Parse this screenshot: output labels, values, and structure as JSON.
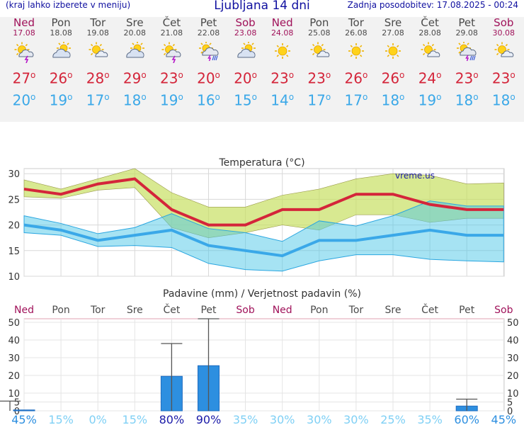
{
  "header": {
    "left_note": "(kraj lahko izberete v meniju)",
    "title": "Ljubljana 14 dni",
    "last_update": "Zadnja posodobitev: 17.08.2025 - 00:24"
  },
  "colors": {
    "weekend": "#a0125a",
    "weekday": "#4a4a4a",
    "max": "#d4253a",
    "min": "#3aa8e8",
    "bar": "#2d8fe0",
    "prob_dark": "#1a1aa8",
    "prob_mid": "#2d8fe0",
    "prob_light": "#7fd0f5"
  },
  "days": [
    {
      "name": "Ned",
      "date": "17.08",
      "icon": "sun-cloud-storm-icon",
      "max": "27",
      "min": "20",
      "weekend": true
    },
    {
      "name": "Pon",
      "date": "18.08",
      "icon": "cloud-sun-icon",
      "max": "26",
      "min": "19",
      "weekend": false
    },
    {
      "name": "Tor",
      "date": "19.08",
      "icon": "sun-small-cloud-icon",
      "max": "28",
      "min": "17",
      "weekend": false
    },
    {
      "name": "Sre",
      "date": "20.08",
      "icon": "cloud-sun-icon",
      "max": "29",
      "min": "18",
      "weekend": false
    },
    {
      "name": "Čet",
      "date": "21.08",
      "icon": "sun-cloud-storm-icon",
      "max": "23",
      "min": "19",
      "weekend": false
    },
    {
      "name": "Pet",
      "date": "22.08",
      "icon": "sun-cloud-rain-storm-icon",
      "max": "20",
      "min": "16",
      "weekend": false
    },
    {
      "name": "Sob",
      "date": "23.08",
      "icon": "cloud-sun-icon",
      "max": "20",
      "min": "15",
      "weekend": true
    },
    {
      "name": "Ned",
      "date": "24.08",
      "icon": "sun-icon",
      "max": "23",
      "min": "14",
      "weekend": true
    },
    {
      "name": "Pon",
      "date": "25.08",
      "icon": "sun-small-cloud-icon",
      "max": "23",
      "min": "17",
      "weekend": false
    },
    {
      "name": "Tor",
      "date": "26.08",
      "icon": "sun-icon",
      "max": "26",
      "min": "17",
      "weekend": false
    },
    {
      "name": "Sre",
      "date": "27.08",
      "icon": "sun-icon",
      "max": "26",
      "min": "18",
      "weekend": false
    },
    {
      "name": "Čet",
      "date": "28.08",
      "icon": "sun-small-cloud-icon",
      "max": "24",
      "min": "19",
      "weekend": false
    },
    {
      "name": "Pet",
      "date": "29.08",
      "icon": "sun-cloud-rain-storm-icon",
      "max": "23",
      "min": "18",
      "weekend": false
    },
    {
      "name": "Sob",
      "date": "30.08",
      "icon": "sun-small-cloud-icon",
      "max": "23",
      "min": "18",
      "weekend": true
    }
  ],
  "chart_data": [
    {
      "type": "line",
      "title": "Temperatura (°C)",
      "watermark": "vreme.us",
      "ylim": [
        10,
        31
      ],
      "yticks": [
        10,
        15,
        20,
        25,
        30
      ],
      "series": [
        {
          "name": "max",
          "values": [
            27,
            26,
            28,
            29,
            23,
            20,
            20,
            23,
            23,
            26,
            26,
            24,
            23,
            23
          ]
        },
        {
          "name": "max_band_high",
          "values": [
            28.8,
            27,
            29,
            31,
            26.3,
            23.5,
            23.5,
            25.8,
            27,
            29,
            30,
            29.7,
            28,
            28.2
          ]
        },
        {
          "name": "max_band_low",
          "values": [
            25.5,
            25.2,
            26.8,
            27.3,
            19.5,
            17.5,
            18.5,
            20,
            19,
            22,
            22,
            20.5,
            21.3,
            21.3
          ]
        },
        {
          "name": "min",
          "values": [
            20,
            19,
            17,
            18,
            19,
            16,
            15,
            14,
            17,
            17,
            18,
            19,
            18,
            18
          ]
        },
        {
          "name": "min_band_high",
          "values": [
            21.8,
            20.3,
            18.3,
            19.5,
            22.2,
            19.3,
            18.5,
            16.8,
            20.8,
            19.8,
            21.8,
            24.7,
            23.7,
            23.7
          ]
        },
        {
          "name": "min_band_low",
          "values": [
            18.5,
            18,
            15.8,
            16,
            15.6,
            12.5,
            11.3,
            11,
            13,
            14.2,
            14.2,
            13.3,
            13,
            12.8
          ]
        }
      ]
    },
    {
      "type": "bar",
      "title": "Padavine (mm) / Verjetnost padavin (%)",
      "ylim": [
        0,
        52
      ],
      "yticks": [
        0,
        5,
        10,
        20,
        30,
        40,
        50
      ],
      "categories": [
        "Ned",
        "Pon",
        "Tor",
        "Sre",
        "Čet",
        "Pet",
        "Sob",
        "Ned",
        "Pon",
        "Tor",
        "Sre",
        "Čet",
        "Pet",
        "Sob"
      ],
      "values": [
        0.5,
        0,
        0,
        0,
        19.5,
        25.5,
        0,
        0,
        0,
        0,
        0,
        0,
        2.7,
        0
      ],
      "error_high": [
        5.5,
        0,
        0,
        0,
        38,
        52,
        0,
        0,
        0,
        0,
        0,
        0,
        6.6,
        0
      ],
      "probability": [
        "45%",
        "15%",
        "0%",
        "15%",
        "80%",
        "90%",
        "35%",
        "30%",
        "30%",
        "30%",
        "25%",
        "35%",
        "60%",
        "45%"
      ]
    }
  ]
}
